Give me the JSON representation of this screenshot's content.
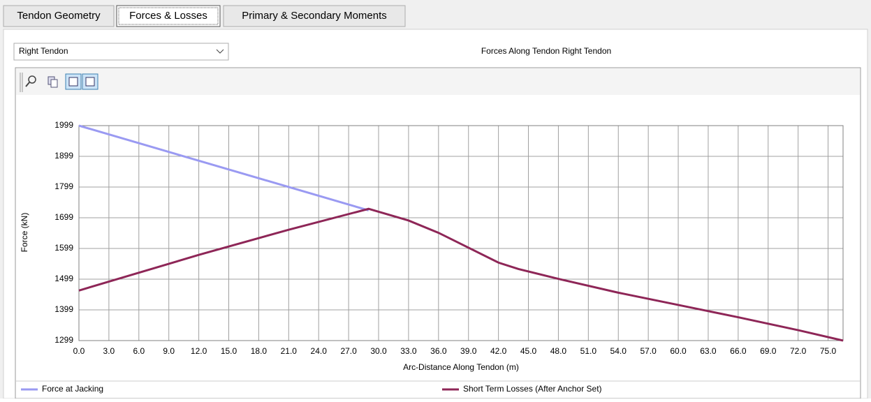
{
  "ui": {
    "tabs": [
      "Tendon Geometry",
      "Forces & Losses",
      "Primary & Secondary Moments"
    ],
    "dropdown": "Right Tendon"
  },
  "chart_data": {
    "type": "line",
    "title": "Forces Along Tendon Right Tendon",
    "xlabel": "Arc-Distance Along Tendon (m)",
    "ylabel": "Force (kN)",
    "xlim": [
      0,
      76.5
    ],
    "ylim": [
      1299,
      1999
    ],
    "xticks": [
      {
        "value": 0,
        "label": "0.0"
      },
      {
        "value": 3,
        "label": "3.0"
      },
      {
        "value": 6,
        "label": "6.0"
      },
      {
        "value": 9,
        "label": "9.0"
      },
      {
        "value": 12,
        "label": "12.0"
      },
      {
        "value": 15,
        "label": "15.0"
      },
      {
        "value": 18,
        "label": "18.0"
      },
      {
        "value": 21,
        "label": "21.0"
      },
      {
        "value": 24,
        "label": "24.0"
      },
      {
        "value": 27,
        "label": "27.0"
      },
      {
        "value": 30,
        "label": "30.0"
      },
      {
        "value": 33,
        "label": "33.0"
      },
      {
        "value": 36,
        "label": "36.0"
      },
      {
        "value": 39,
        "label": "39.0"
      },
      {
        "value": 42,
        "label": "42.0"
      },
      {
        "value": 45,
        "label": "45.0"
      },
      {
        "value": 48,
        "label": "48.0"
      },
      {
        "value": 51,
        "label": "51.0"
      },
      {
        "value": 54,
        "label": "54.0"
      },
      {
        "value": 57,
        "label": "57.0"
      },
      {
        "value": 60,
        "label": "60.0"
      },
      {
        "value": 63,
        "label": "63.0"
      },
      {
        "value": 66,
        "label": "66.0"
      },
      {
        "value": 69,
        "label": "69.0"
      },
      {
        "value": 72,
        "label": "72.0"
      },
      {
        "value": 75,
        "label": "75.0"
      }
    ],
    "yticks": [
      1299,
      1399,
      1499,
      1599,
      1699,
      1799,
      1899,
      1999
    ],
    "grid": true,
    "series": [
      {
        "name": "Force at Jacking",
        "color": "#9a9af2",
        "x": [
          0,
          29
        ],
        "values": [
          1999,
          1723
        ]
      },
      {
        "name": "Short Term Losses (After Anchor Set)",
        "color": "#8e2657",
        "x": [
          0,
          12,
          21,
          29,
          33,
          36,
          42,
          44,
          48,
          54,
          60,
          66,
          72,
          76.5
        ],
        "values": [
          1462,
          1578,
          1660,
          1728,
          1690,
          1650,
          1553,
          1532,
          1500,
          1455,
          1415,
          1375,
          1333,
          1299
        ]
      }
    ]
  }
}
